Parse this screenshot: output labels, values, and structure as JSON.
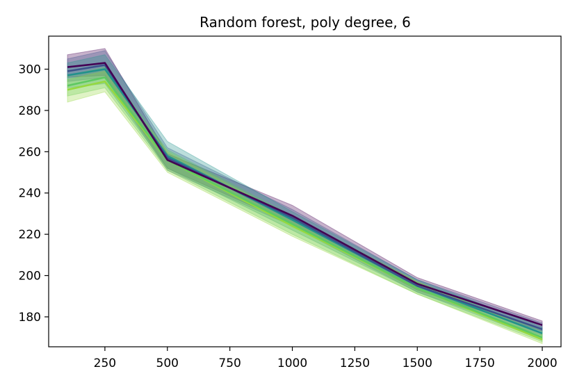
{
  "chart_data": {
    "type": "line",
    "title": "Random forest, poly degree, 6",
    "xlabel": "",
    "ylabel": "",
    "x": [
      100,
      250,
      500,
      1000,
      1500,
      2000
    ],
    "xlim": [
      25,
      2075
    ],
    "ylim": [
      165.5,
      316
    ],
    "xticks": [
      250,
      500,
      750,
      1000,
      1250,
      1500,
      1750,
      2000
    ],
    "yticks": [
      180,
      200,
      220,
      240,
      260,
      280,
      300
    ],
    "grid": false,
    "legend": "none",
    "band_opacity": 0.3,
    "series": [
      {
        "color": "#440154",
        "values": [
          301,
          303,
          256,
          229,
          196,
          176
        ],
        "lower": [
          296,
          297,
          252,
          225,
          193,
          173
        ],
        "upper": [
          307,
          310,
          259,
          234,
          199,
          178
        ]
      },
      {
        "color": "#3b528b",
        "values": [
          299,
          302,
          257,
          228,
          195,
          174
        ],
        "lower": [
          294,
          296,
          251,
          224,
          192,
          171
        ],
        "upper": [
          305,
          309,
          262,
          232,
          198,
          177
        ]
      },
      {
        "color": "#21918c",
        "values": [
          297,
          300,
          258,
          227,
          195,
          172
        ],
        "lower": [
          291,
          293,
          252,
          222,
          192,
          169
        ],
        "upper": [
          303,
          307,
          265,
          231,
          198,
          175
        ]
      },
      {
        "color": "#5ec962",
        "values": [
          292,
          296,
          256,
          225,
          194,
          170
        ],
        "lower": [
          287,
          291,
          251,
          220,
          191,
          168
        ],
        "upper": [
          297,
          301,
          261,
          229,
          197,
          173
        ]
      },
      {
        "color": "#95d840",
        "values": [
          290,
          294,
          256,
          224,
          194,
          169
        ],
        "lower": [
          284,
          289,
          250,
          219,
          191,
          167
        ],
        "upper": [
          295,
          299,
          260,
          228,
          197,
          172
        ]
      }
    ]
  }
}
